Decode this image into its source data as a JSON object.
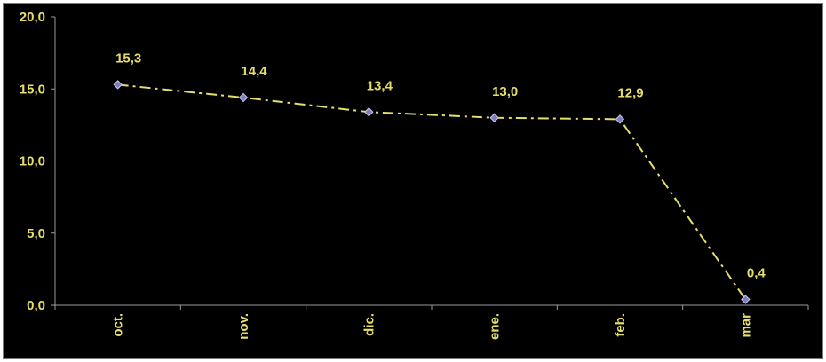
{
  "chart_data": {
    "type": "line",
    "title": "",
    "xlabel": "",
    "ylabel": "",
    "categories": [
      "oct.",
      "nov.",
      "dic.",
      "ene.",
      "feb.",
      "mar"
    ],
    "series": [
      {
        "values": [
          15.3,
          14.4,
          13.4,
          13.0,
          12.9,
          0.4
        ]
      }
    ],
    "data_labels": [
      "15,3",
      "14,4",
      "13,4",
      "13,0",
      "12,9",
      "0,4"
    ],
    "y_ticks": [
      0,
      5,
      10,
      15,
      20
    ],
    "y_tick_labels": [
      "0,0",
      "5,0",
      "10,0",
      "15,0",
      "20,0"
    ],
    "ylim": [
      0,
      20
    ],
    "grid": false,
    "legend": "none",
    "colors": {
      "background": "#000000",
      "text": "#e6df6a",
      "line": "#e6df6a",
      "marker_fill": "#7d7fc4",
      "marker_stroke": "#c8c8e8",
      "axis": "#9a9a9a"
    }
  }
}
